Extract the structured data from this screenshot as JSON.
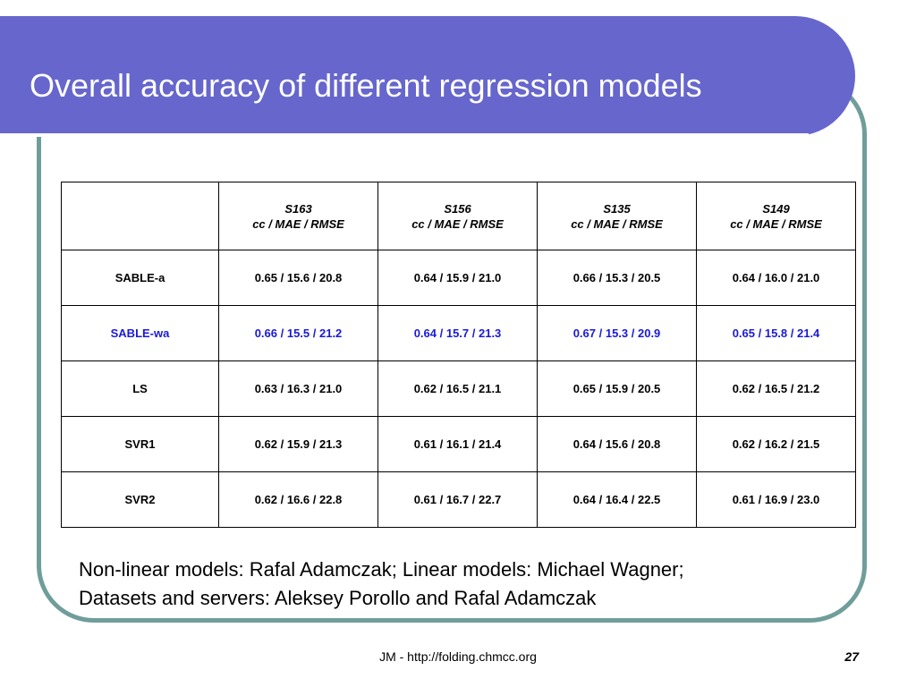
{
  "slide": {
    "title": "Overall accuracy of different regression models",
    "footer": "JM - http://folding.chmcc.org",
    "page_number": "27",
    "credits_line1": "Non-linear models: Rafal Adamczak; Linear models: Michael Wagner;",
    "credits_line2": "Datasets and servers: Aleksey Porollo and Rafal Adamczak",
    "highlight_color": "#1a1ad6",
    "title_bar_color": "#6666cc",
    "frame_color": "#6f9e9a"
  },
  "table": {
    "columns": [
      {
        "name": "S163",
        "metrics": "cc / MAE / RMSE"
      },
      {
        "name": "S156",
        "metrics": "cc / MAE / RMSE"
      },
      {
        "name": "S135",
        "metrics": "cc / MAE / RMSE"
      },
      {
        "name": "S149",
        "metrics": "cc / MAE / RMSE"
      }
    ],
    "rows": [
      {
        "model": "SABLE-a",
        "values": [
          "0.65 / 15.6 / 20.8",
          "0.64 / 15.9 / 21.0",
          "0.66 / 15.3 / 20.5",
          "0.64 / 16.0 / 21.0"
        ]
      },
      {
        "model": "SABLE-wa",
        "values": [
          "0.66 / 15.5 / 21.2",
          "0.64 / 15.7 / 21.3",
          "0.67 / 15.3 / 20.9",
          "0.65 / 15.8 / 21.4"
        ]
      },
      {
        "model": "LS",
        "values": [
          "0.63 / 16.3 / 21.0",
          "0.62 / 16.5 / 21.1",
          "0.65 / 15.9 / 20.5",
          "0.62 / 16.5 / 21.2"
        ]
      },
      {
        "model": "SVR1",
        "values": [
          "0.62 / 15.9 / 21.3",
          "0.61 / 16.1 / 21.4",
          "0.64 / 15.6 / 20.8",
          "0.62 / 16.2 / 21.5"
        ]
      },
      {
        "model": "SVR2",
        "values": [
          "0.62 / 16.6 / 22.8",
          "0.61 / 16.7 / 22.7",
          "0.64 / 16.4 / 22.5",
          "0.61 / 16.9 / 23.0"
        ]
      }
    ]
  }
}
